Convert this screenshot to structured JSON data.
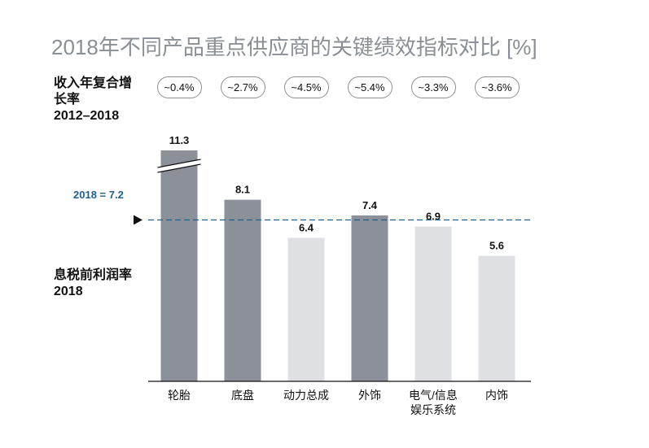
{
  "chart_data": {
    "type": "bar",
    "title": "2018年不同产品重点供应商的关键绩效指标对比 [%]",
    "cagr_label_line1": "收入年复合增",
    "cagr_label_line2": "长率",
    "cagr_label_line3": "2012–2018",
    "ylabel_line1": "息税前利润率",
    "ylabel_line2": "2018",
    "categories": [
      "轮胎",
      "底盘",
      "动力总成",
      "外饰",
      "电气/信息娱乐系统",
      "内饰"
    ],
    "category_lines": [
      [
        "轮胎"
      ],
      [
        "底盘"
      ],
      [
        "动力总成"
      ],
      [
        "外饰"
      ],
      [
        "电气/信息",
        "娱乐系统"
      ],
      [
        "内饰"
      ]
    ],
    "values": [
      11.3,
      8.1,
      6.4,
      7.4,
      6.9,
      5.6
    ],
    "value_labels": [
      "11.3",
      "8.1",
      "6.4",
      "7.4",
      "6.9",
      "5.6"
    ],
    "cagr": [
      "~0.4%",
      "~2.7%",
      "~4.5%",
      "~5.4%",
      "~3.3%",
      "~3.6%"
    ],
    "bar_colors": [
      "#8c9199",
      "#8c9199",
      "#dfe0e3",
      "#8c9199",
      "#dfe0e3",
      "#dfe0e3"
    ],
    "truncated_bar_index": 0,
    "reference_line": {
      "value": 7.2,
      "label": "2018 = 7.2",
      "color": "#1f5f8b"
    },
    "ylim": [
      0,
      10.3
    ],
    "grid": false
  }
}
